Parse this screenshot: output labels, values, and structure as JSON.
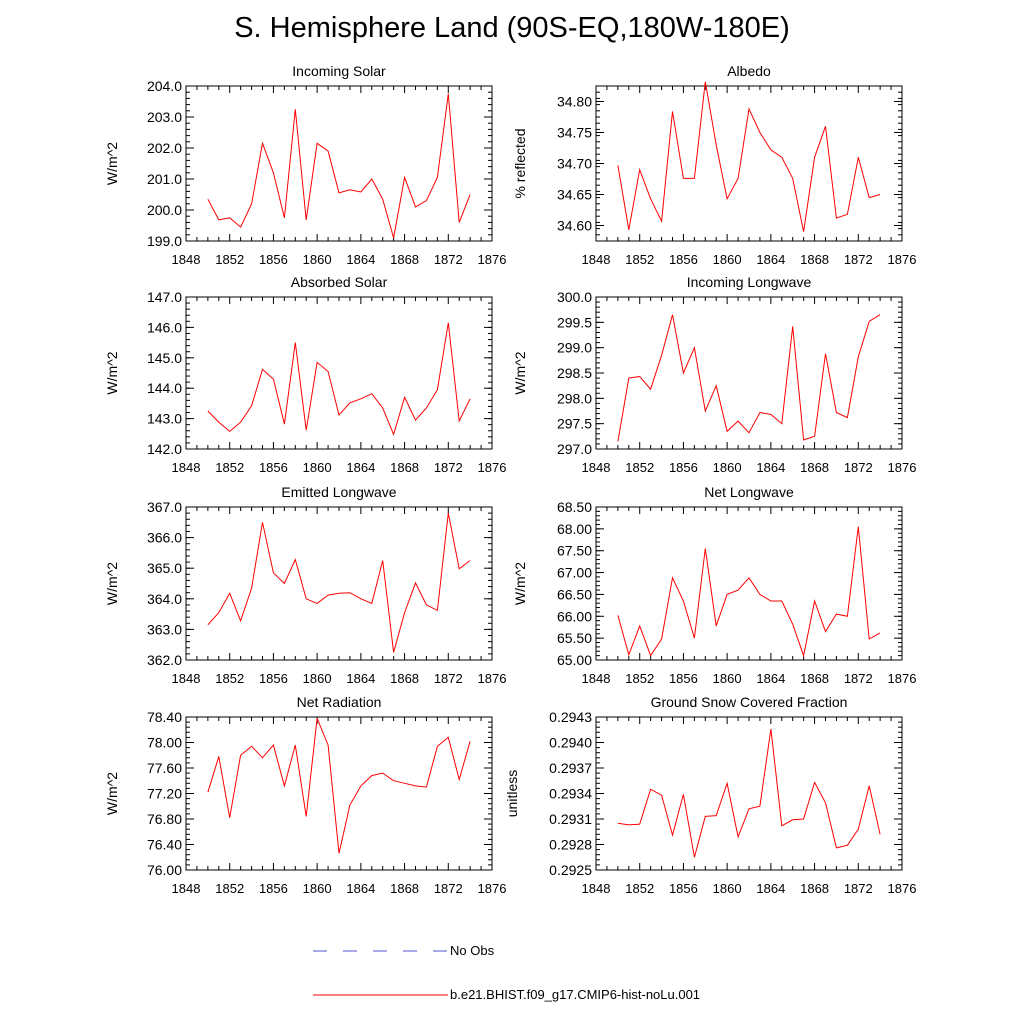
{
  "figure": {
    "title": "S. Hemisphere Land (90S-EQ,180W-180E)"
  },
  "legend": {
    "items": [
      {
        "label": "No Obs",
        "color": "#5555cc",
        "style": "dashed"
      },
      {
        "label": "b.e21.BHIST.f09_g17.CMIP6-hist-noLu.001",
        "color": "#ff0000",
        "style": "solid"
      }
    ]
  },
  "chart_data": [
    {
      "type": "line",
      "title": "Incoming Solar",
      "ylabel": "W/m^2",
      "xlabel": "",
      "xlim": [
        1848,
        1876
      ],
      "xticks": [
        1848,
        1852,
        1856,
        1860,
        1864,
        1868,
        1872,
        1876
      ],
      "ylim": [
        199.0,
        204.0
      ],
      "yticks": [
        "199.0",
        "200.0",
        "201.0",
        "202.0",
        "203.0",
        "204.0"
      ],
      "color": "#ff0000",
      "x": [
        1850,
        1851,
        1852,
        1853,
        1854,
        1855,
        1856,
        1857,
        1858,
        1859,
        1860,
        1861,
        1862,
        1863,
        1864,
        1865,
        1866,
        1867,
        1868,
        1869,
        1870,
        1871,
        1872,
        1873,
        1874
      ],
      "series": [
        {
          "values": [
            200.35,
            199.68,
            199.75,
            199.45,
            200.2,
            202.15,
            201.2,
            199.75,
            203.25,
            199.68,
            202.15,
            201.9,
            200.55,
            200.65,
            200.58,
            201.0,
            200.35,
            199.1,
            201.05,
            200.1,
            200.3,
            201.05,
            203.75,
            199.6,
            200.5
          ]
        }
      ]
    },
    {
      "type": "line",
      "title": "Albedo",
      "ylabel": "% reflected",
      "xlabel": "",
      "xlim": [
        1848,
        1876
      ],
      "xticks": [
        1848,
        1852,
        1856,
        1860,
        1864,
        1868,
        1872,
        1876
      ],
      "ylim": [
        34.575,
        34.825
      ],
      "yticks": [
        "34.60",
        "34.65",
        "34.70",
        "34.75",
        "34.80"
      ],
      "color": "#ff0000",
      "x": [
        1850,
        1851,
        1852,
        1853,
        1854,
        1855,
        1856,
        1857,
        1858,
        1859,
        1860,
        1861,
        1862,
        1863,
        1864,
        1865,
        1866,
        1867,
        1868,
        1869,
        1870,
        1871,
        1872,
        1873,
        1874
      ],
      "series": [
        {
          "values": [
            34.697,
            34.593,
            34.69,
            34.643,
            34.607,
            34.784,
            34.676,
            34.676,
            34.832,
            34.73,
            34.643,
            34.676,
            34.788,
            34.75,
            34.722,
            34.71,
            34.676,
            34.59,
            34.71,
            34.76,
            34.612,
            34.618,
            34.71,
            34.645,
            34.65
          ]
        }
      ]
    },
    {
      "type": "line",
      "title": "Absorbed Solar",
      "ylabel": "W/m^2",
      "xlabel": "",
      "xlim": [
        1848,
        1876
      ],
      "xticks": [
        1848,
        1852,
        1856,
        1860,
        1864,
        1868,
        1872,
        1876
      ],
      "ylim": [
        142.0,
        147.0
      ],
      "yticks": [
        "142.0",
        "143.0",
        "144.0",
        "145.0",
        "146.0",
        "147.0"
      ],
      "color": "#ff0000",
      "x": [
        1850,
        1851,
        1852,
        1853,
        1854,
        1855,
        1856,
        1857,
        1858,
        1859,
        1860,
        1861,
        1862,
        1863,
        1864,
        1865,
        1866,
        1867,
        1868,
        1869,
        1870,
        1871,
        1872,
        1873,
        1874
      ],
      "series": [
        {
          "values": [
            143.25,
            142.88,
            142.58,
            142.88,
            143.42,
            144.62,
            144.3,
            142.82,
            145.5,
            142.62,
            144.85,
            144.55,
            143.12,
            143.52,
            143.65,
            143.82,
            143.35,
            142.48,
            143.7,
            142.95,
            143.35,
            143.95,
            146.15,
            142.92,
            143.65
          ]
        }
      ]
    },
    {
      "type": "line",
      "title": "Incoming Longwave",
      "ylabel": "W/m^2",
      "xlabel": "",
      "xlim": [
        1848,
        1876
      ],
      "xticks": [
        1848,
        1852,
        1856,
        1860,
        1864,
        1868,
        1872,
        1876
      ],
      "ylim": [
        297.0,
        300.0
      ],
      "yticks": [
        "297.0",
        "297.5",
        "298.0",
        "298.5",
        "299.0",
        "299.5",
        "300.0"
      ],
      "color": "#ff0000",
      "x": [
        1850,
        1851,
        1852,
        1853,
        1854,
        1855,
        1856,
        1857,
        1858,
        1859,
        1860,
        1861,
        1862,
        1863,
        1864,
        1865,
        1866,
        1867,
        1868,
        1869,
        1870,
        1871,
        1872,
        1873,
        1874
      ],
      "series": [
        {
          "values": [
            297.15,
            298.4,
            298.43,
            298.18,
            298.85,
            299.65,
            298.5,
            299.0,
            297.75,
            298.25,
            297.35,
            297.55,
            297.32,
            297.72,
            297.68,
            297.5,
            299.42,
            297.18,
            297.25,
            298.88,
            297.72,
            297.62,
            298.82,
            299.52,
            299.65
          ]
        }
      ]
    },
    {
      "type": "line",
      "title": "Emitted Longwave",
      "ylabel": "W/m^2",
      "xlabel": "",
      "xlim": [
        1848,
        1876
      ],
      "xticks": [
        1848,
        1852,
        1856,
        1860,
        1864,
        1868,
        1872,
        1876
      ],
      "ylim": [
        362.0,
        367.0
      ],
      "yticks": [
        "362.0",
        "363.0",
        "364.0",
        "365.0",
        "366.0",
        "367.0"
      ],
      "color": "#ff0000",
      "x": [
        1850,
        1851,
        1852,
        1853,
        1854,
        1855,
        1856,
        1857,
        1858,
        1859,
        1860,
        1861,
        1862,
        1863,
        1864,
        1865,
        1866,
        1867,
        1868,
        1869,
        1870,
        1871,
        1872,
        1873,
        1874
      ],
      "series": [
        {
          "values": [
            363.15,
            363.55,
            364.18,
            363.28,
            364.35,
            366.5,
            364.85,
            364.5,
            365.28,
            364.0,
            363.85,
            364.12,
            364.18,
            364.2,
            364.0,
            363.85,
            365.25,
            362.25,
            363.55,
            364.52,
            363.8,
            363.62,
            366.8,
            364.98,
            365.25
          ]
        }
      ]
    },
    {
      "type": "line",
      "title": "Net Longwave",
      "ylabel": "W/m^2",
      "xlabel": "",
      "xlim": [
        1848,
        1876
      ],
      "xticks": [
        1848,
        1852,
        1856,
        1860,
        1864,
        1868,
        1872,
        1876
      ],
      "ylim": [
        65.0,
        68.5
      ],
      "yticks": [
        "65.00",
        "65.50",
        "66.00",
        "66.50",
        "67.00",
        "67.50",
        "68.00",
        "68.50"
      ],
      "color": "#ff0000",
      "x": [
        1850,
        1851,
        1852,
        1853,
        1854,
        1855,
        1856,
        1857,
        1858,
        1859,
        1860,
        1861,
        1862,
        1863,
        1864,
        1865,
        1866,
        1867,
        1868,
        1869,
        1870,
        1871,
        1872,
        1873,
        1874
      ],
      "series": [
        {
          "values": [
            66.02,
            65.12,
            65.78,
            65.1,
            65.48,
            66.88,
            66.35,
            65.5,
            67.55,
            65.78,
            66.5,
            66.6,
            66.88,
            66.5,
            66.35,
            66.35,
            65.82,
            65.1,
            66.35,
            65.65,
            66.05,
            66.0,
            68.05,
            65.48,
            65.62
          ]
        }
      ]
    },
    {
      "type": "line",
      "title": "Net Radiation",
      "ylabel": "W/m^2",
      "xlabel": "",
      "xlim": [
        1848,
        1876
      ],
      "xticks": [
        1848,
        1852,
        1856,
        1860,
        1864,
        1868,
        1872,
        1876
      ],
      "ylim": [
        76.0,
        78.4
      ],
      "yticks": [
        "76.00",
        "76.40",
        "76.80",
        "77.20",
        "77.60",
        "78.00",
        "78.40"
      ],
      "color": "#ff0000",
      "x": [
        1850,
        1851,
        1852,
        1853,
        1854,
        1855,
        1856,
        1857,
        1858,
        1859,
        1860,
        1861,
        1862,
        1863,
        1864,
        1865,
        1866,
        1867,
        1868,
        1869,
        1870,
        1871,
        1872,
        1873,
        1874
      ],
      "series": [
        {
          "values": [
            77.22,
            77.78,
            76.82,
            77.8,
            77.94,
            77.76,
            77.96,
            77.32,
            77.96,
            76.84,
            78.38,
            77.96,
            76.26,
            77.02,
            77.32,
            77.48,
            77.52,
            77.4,
            77.36,
            77.32,
            77.3,
            77.94,
            78.08,
            77.42,
            78.02
          ]
        }
      ]
    },
    {
      "type": "line",
      "title": "Ground Snow Covered Fraction",
      "ylabel": "unitless",
      "xlabel": "",
      "xlim": [
        1848,
        1876
      ],
      "xticks": [
        1848,
        1852,
        1856,
        1860,
        1864,
        1868,
        1872,
        1876
      ],
      "ylim": [
        0.2925,
        0.2943
      ],
      "yticks": [
        "0.2925",
        "0.2928",
        "0.2931",
        "0.2934",
        "0.2937",
        "0.2940",
        "0.2943"
      ],
      "color": "#ff0000",
      "x": [
        1850,
        1851,
        1852,
        1853,
        1854,
        1855,
        1856,
        1857,
        1858,
        1859,
        1860,
        1861,
        1862,
        1863,
        1864,
        1865,
        1866,
        1867,
        1868,
        1869,
        1870,
        1871,
        1872,
        1873,
        1874
      ],
      "series": [
        {
          "values": [
            0.29305,
            0.29303,
            0.29304,
            0.29345,
            0.29338,
            0.29291,
            0.29339,
            0.29265,
            0.29313,
            0.29314,
            0.29352,
            0.29289,
            0.29322,
            0.29325,
            0.29416,
            0.29302,
            0.29309,
            0.2931,
            0.29353,
            0.29329,
            0.29276,
            0.29279,
            0.29298,
            0.29349,
            0.29292
          ]
        }
      ]
    }
  ]
}
